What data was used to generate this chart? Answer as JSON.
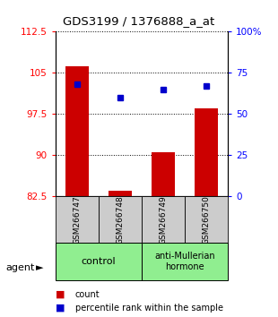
{
  "title": "GDS3199 / 1376888_a_at",
  "samples": [
    "GSM266747",
    "GSM266748",
    "GSM266749",
    "GSM266750"
  ],
  "red_values": [
    106.2,
    83.5,
    90.6,
    98.5
  ],
  "blue_values": [
    68,
    60,
    65,
    67
  ],
  "ylim_left": [
    82.5,
    112.5
  ],
  "ylim_right": [
    0,
    100
  ],
  "left_ticks": [
    82.5,
    90,
    97.5,
    105,
    112.5
  ],
  "right_ticks": [
    0,
    25,
    50,
    75,
    100
  ],
  "right_tick_labels": [
    "0",
    "25",
    "50",
    "75",
    "100%"
  ],
  "bar_color": "#CC0000",
  "dot_color": "#0000CC",
  "bar_bottom": 82.5,
  "agent_label": "agent",
  "legend_count": "count",
  "legend_pct": "percentile rank within the sample",
  "ctrl_color": "#90EE90",
  "sample_box_color": "#CCCCCC"
}
